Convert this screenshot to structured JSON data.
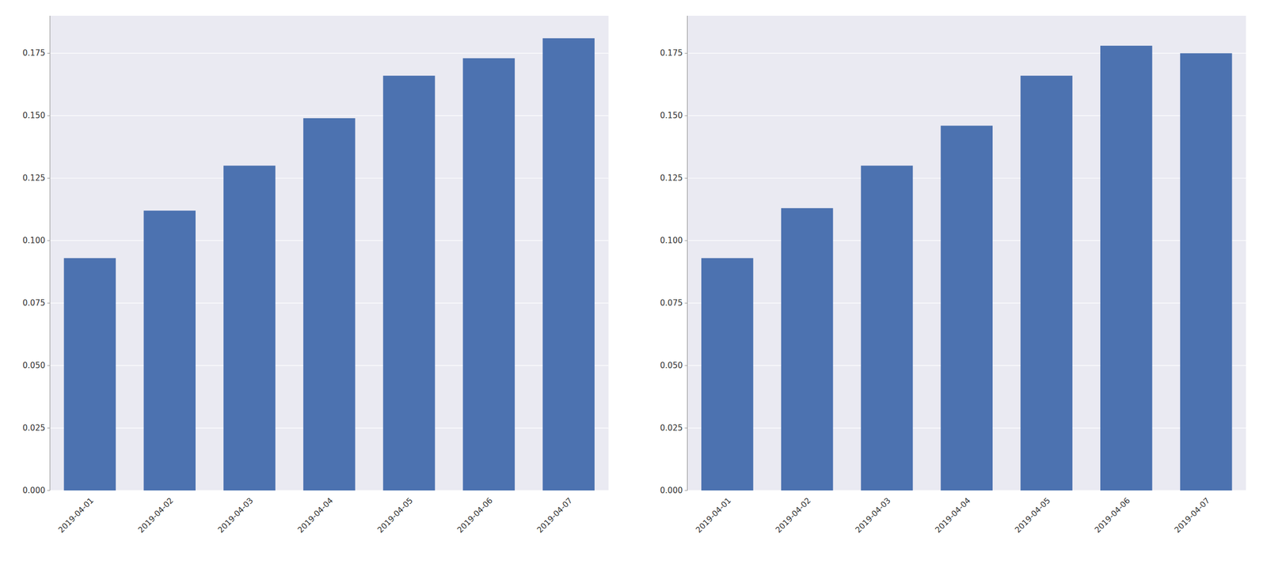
{
  "chart_data": [
    {
      "type": "bar",
      "categories": [
        "2019-04-01",
        "2019-04-02",
        "2019-04-03",
        "2019-04-04",
        "2019-04-05",
        "2019-04-06",
        "2019-04-07"
      ],
      "values": [
        0.093,
        0.112,
        0.13,
        0.149,
        0.166,
        0.173,
        0.181
      ],
      "color": "#4c72b0",
      "ylim": [
        0,
        0.19
      ],
      "yticks": [
        {
          "value": 0,
          "label": "0.000"
        },
        0.025,
        {
          "value": 0.05,
          "label": "0.050"
        },
        0.075,
        {
          "value": 0.1,
          "label": "0.100"
        },
        0.125,
        {
          "value": 0.15,
          "label": "0.150"
        },
        0.175
      ],
      "grid": true
    },
    {
      "type": "bar",
      "categories": [
        "2019-04-01",
        "2019-04-02",
        "2019-04-03",
        "2019-04-04",
        "2019-04-05",
        "2019-04-06",
        "2019-04-07"
      ],
      "values": [
        0.093,
        0.113,
        0.13,
        0.146,
        0.166,
        0.178,
        0.175
      ],
      "color": "#4c72b0",
      "ylim": [
        0,
        0.19
      ],
      "yticks": [
        {
          "value": 0,
          "label": "0.000"
        },
        0.025,
        {
          "value": 0.05,
          "label": "0.050"
        },
        0.075,
        {
          "value": 0.1,
          "label": "0.100"
        },
        0.125,
        {
          "value": 0.15,
          "label": "0.150"
        },
        0.175
      ],
      "grid": true
    }
  ]
}
